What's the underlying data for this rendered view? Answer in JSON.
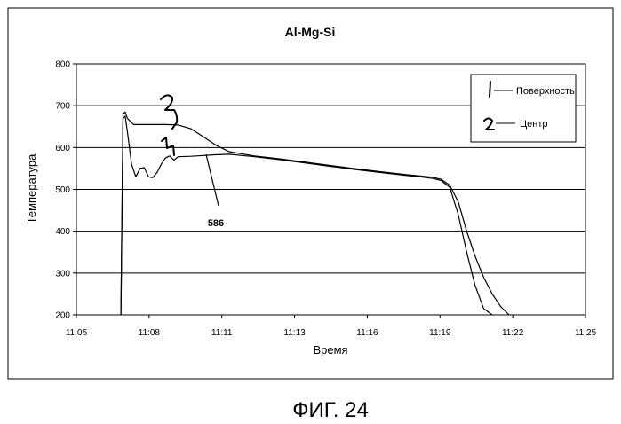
{
  "chart_data": {
    "type": "line",
    "title": "Al-Mg-Si",
    "xlabel": "Время",
    "ylabel": "Температура",
    "x_ticks": [
      "11:05",
      "11:08",
      "11:11",
      "11:13",
      "11:16",
      "11:19",
      "11:22",
      "11:25"
    ],
    "x_range": [
      "11:05",
      "11:25"
    ],
    "ylim": [
      200,
      800
    ],
    "y_ticks": [
      200,
      300,
      400,
      500,
      600,
      700,
      800
    ],
    "grid": "horizontal",
    "legend_position": "top-right",
    "series": [
      {
        "name": "Поверхность",
        "marker": "1",
        "x": [
          "11:06:45",
          "11:06:50",
          "11:06:55",
          "11:07:00",
          "11:07:10",
          "11:07:20",
          "11:07:30",
          "11:07:40",
          "11:07:50",
          "11:08:00",
          "11:08:10",
          "11:08:20",
          "11:08:30",
          "11:08:40",
          "11:08:50",
          "11:09:00",
          "11:09:30",
          "11:10:00",
          "11:10:30",
          "11:11:00",
          "11:12:00",
          "11:13:00",
          "11:14:00",
          "11:15:00",
          "11:16:00",
          "11:17:00",
          "11:18:00",
          "11:18:30",
          "11:19:00",
          "11:19:20",
          "11:19:40",
          "11:20:00",
          "11:20:20",
          "11:20:40",
          "11:21:00",
          "11:21:20"
        ],
        "values": [
          200,
          670,
          675,
          640,
          560,
          530,
          550,
          552,
          530,
          528,
          540,
          560,
          575,
          580,
          570,
          578,
          579,
          581,
          583,
          584,
          578,
          571,
          563,
          555,
          547,
          540,
          533,
          530,
          526,
          521,
          505,
          440,
          350,
          270,
          215,
          200
        ]
      },
      {
        "name": "Центр",
        "marker": "2",
        "x": [
          "11:06:45",
          "11:06:50",
          "11:06:55",
          "11:07:00",
          "11:07:15",
          "11:07:30",
          "11:08:00",
          "11:08:30",
          "11:09:00",
          "11:09:30",
          "11:10:00",
          "11:10:30",
          "11:11:00",
          "11:12:00",
          "11:13:00",
          "11:14:00",
          "11:15:00",
          "11:16:00",
          "11:17:00",
          "11:18:00",
          "11:18:30",
          "11:19:00",
          "11:19:20",
          "11:19:40",
          "11:20:00",
          "11:20:20",
          "11:20:40",
          "11:21:00",
          "11:21:20",
          "11:21:40",
          "11:22:00"
        ],
        "values": [
          200,
          680,
          685,
          670,
          655,
          655,
          655,
          655,
          654,
          645,
          625,
          605,
          590,
          580,
          573,
          565,
          557,
          549,
          542,
          535,
          532,
          529,
          524,
          510,
          470,
          400,
          340,
          290,
          250,
          220,
          200
        ]
      }
    ],
    "annotations": [
      {
        "text": "586",
        "x": "11:10:10",
        "y": 586
      }
    ],
    "figure_caption": "ФИГ. 24"
  },
  "colors": {
    "line": "#000000",
    "grid": "#000000",
    "background": "#ffffff"
  }
}
